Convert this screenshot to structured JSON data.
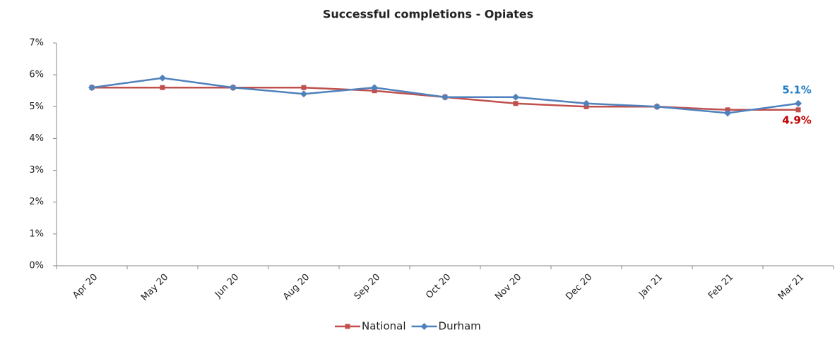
{
  "chart_data": {
    "type": "line",
    "title": "Successful completions - Opiates",
    "categories": [
      "Apr 20",
      "May 20",
      "Jun 20",
      "Aug 20",
      "Sep 20",
      "Oct 20",
      "Nov 20",
      "Dec 20",
      "Jan 21",
      "Feb 21",
      "Mar 21"
    ],
    "series": [
      {
        "name": "National",
        "color": "#c0504d",
        "marker": "square",
        "label_color": "#c00000",
        "values": [
          5.6,
          5.6,
          5.6,
          5.6,
          5.5,
          5.3,
          5.1,
          5.0,
          5.0,
          4.9,
          4.9
        ],
        "value_labels": [
          null,
          null,
          null,
          null,
          null,
          null,
          null,
          null,
          null,
          null,
          "4.9%"
        ]
      },
      {
        "name": "Durham",
        "color": "#4f81bd",
        "marker": "diamond",
        "label_color": "#1f7ac4",
        "values": [
          5.6,
          5.9,
          5.6,
          5.4,
          5.6,
          5.3,
          5.3,
          5.1,
          5.0,
          4.8,
          5.1
        ],
        "value_labels": [
          null,
          null,
          null,
          null,
          null,
          null,
          null,
          null,
          null,
          null,
          "5.1%"
        ]
      }
    ],
    "ylim": [
      0,
      7
    ],
    "yticks": [
      {
        "value": 0,
        "label": "0%"
      },
      {
        "value": 1,
        "label": "1%"
      },
      {
        "value": 2,
        "label": "2%"
      },
      {
        "value": 3,
        "label": "3%"
      },
      {
        "value": 4,
        "label": "4%"
      },
      {
        "value": 5,
        "label": "5%"
      },
      {
        "value": 6,
        "label": "6%"
      },
      {
        "value": 7,
        "label": "7%"
      }
    ],
    "grid": false,
    "legend": "bottom"
  }
}
